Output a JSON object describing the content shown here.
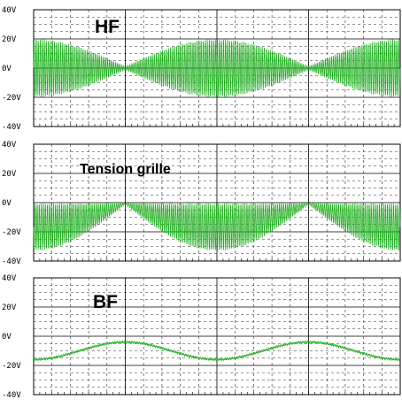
{
  "chart_data": [
    {
      "type": "line",
      "title": "HF",
      "ylim": [
        -40,
        40
      ],
      "ytick_labels": [
        "40V",
        "20V",
        "0V",
        "-20V",
        "-40V"
      ],
      "yticks": [
        40,
        20,
        0,
        -20,
        -40
      ],
      "grid": true,
      "series": [
        {
          "color": "#22b022",
          "envelope_max": [
            20,
            1,
            20,
            1,
            20
          ],
          "envelope_x": [
            0,
            0.25,
            0.5,
            0.75,
            1
          ],
          "description_values": "AM carrier, envelope peaks +/-20V at x=0,0.5,1 and nodes near 0V at x=0.25,0.75"
        }
      ]
    },
    {
      "type": "line",
      "title": "Tension grille",
      "ylim": [
        -40,
        40
      ],
      "ytick_labels": [
        "40V",
        "20V",
        "0V",
        "-20V",
        "-40V"
      ],
      "yticks": [
        40,
        20,
        0,
        -20,
        -40
      ],
      "grid": true,
      "series": [
        {
          "color": "#22b022",
          "upper": -0.5,
          "lower_min": -33,
          "lower_at_node": -1,
          "envelope_x": [
            0,
            0.25,
            0.5,
            0.75,
            1
          ]
        }
      ]
    },
    {
      "type": "line",
      "title": "BF",
      "ylim": [
        -40,
        40
      ],
      "ytick_labels": [
        "40V",
        "20V",
        "0V",
        "-20V",
        "-40V"
      ],
      "yticks": [
        40,
        20,
        0,
        -20,
        -40
      ],
      "grid": true,
      "series": [
        {
          "color": "#22b022",
          "mean": -10,
          "amplitude": 6,
          "peaks_x": [
            0.25,
            0.75
          ],
          "troughs_x": [
            0,
            0.5,
            1
          ]
        }
      ]
    }
  ]
}
